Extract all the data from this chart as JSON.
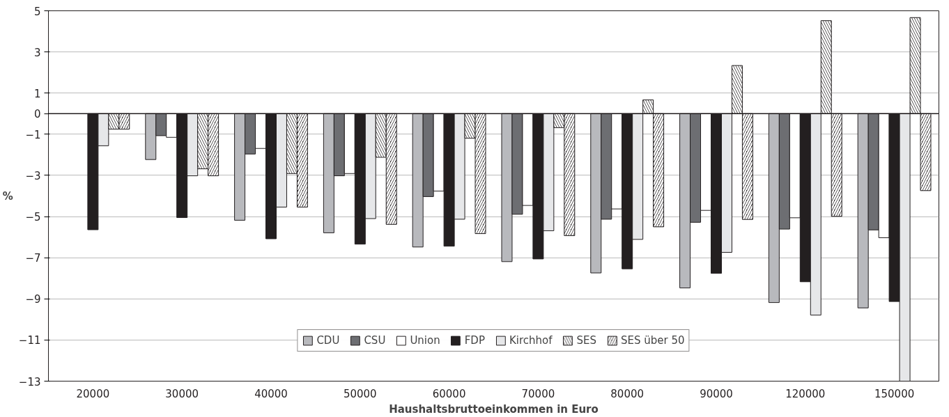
{
  "chart_data": {
    "type": "bar",
    "xlabel": "Haushaltsbruttoeinkommen in Euro",
    "ylabel": "%",
    "categories": [
      "20000",
      "30000",
      "40000",
      "50000",
      "60000",
      "70000",
      "80000",
      "90000",
      "120000",
      "150000"
    ],
    "series": [
      {
        "name": "CDU",
        "color": "#b8b9bd",
        "values": [
          null,
          -2.23,
          -5.18,
          -5.79,
          -6.48,
          -7.19,
          -7.74,
          -8.47,
          -9.18,
          -9.44
        ]
      },
      {
        "name": "CSU",
        "color": "#6d6e72",
        "values": [
          null,
          -1.07,
          -1.96,
          -3.02,
          -4.03,
          -4.89,
          -5.13,
          -5.28,
          -5.61,
          -5.65
        ]
      },
      {
        "name": "Union",
        "color": "#ffffff",
        "values": [
          null,
          -1.15,
          -1.69,
          -2.91,
          -3.76,
          -4.46,
          -4.63,
          -4.7,
          -5.06,
          -6.03
        ]
      },
      {
        "name": "FDP",
        "color": "#231f20",
        "values": [
          -5.64,
          -5.05,
          -6.08,
          -6.34,
          -6.44,
          -7.06,
          -7.54,
          -7.76,
          -8.17,
          -9.13
        ]
      },
      {
        "name": "Kirchhof",
        "color": "#e6e7e9",
        "values": [
          -1.56,
          -3.02,
          -4.54,
          -5.1,
          -5.13,
          -5.69,
          -6.11,
          -6.74,
          -9.79,
          -13
        ]
      },
      {
        "name": "SES",
        "color": "#231f20",
        "values": [
          -0.75,
          -2.68,
          -2.91,
          -2.12,
          -1.19,
          -0.68,
          0.67,
          2.34,
          4.52,
          4.67
        ]
      },
      {
        "name": "SES über 50",
        "color": "#231f20",
        "values": [
          -0.75,
          -3.02,
          -4.54,
          -5.38,
          -5.83,
          -5.93,
          -5.5,
          -5.14,
          -4.99,
          -3.74
        ]
      }
    ],
    "ylim": [
      -13,
      5
    ],
    "yticks": [
      5,
      3,
      1,
      0,
      -1,
      -3,
      -5,
      -7,
      -9,
      -11,
      -13
    ],
    "grid": "y",
    "legend": "bottom"
  }
}
